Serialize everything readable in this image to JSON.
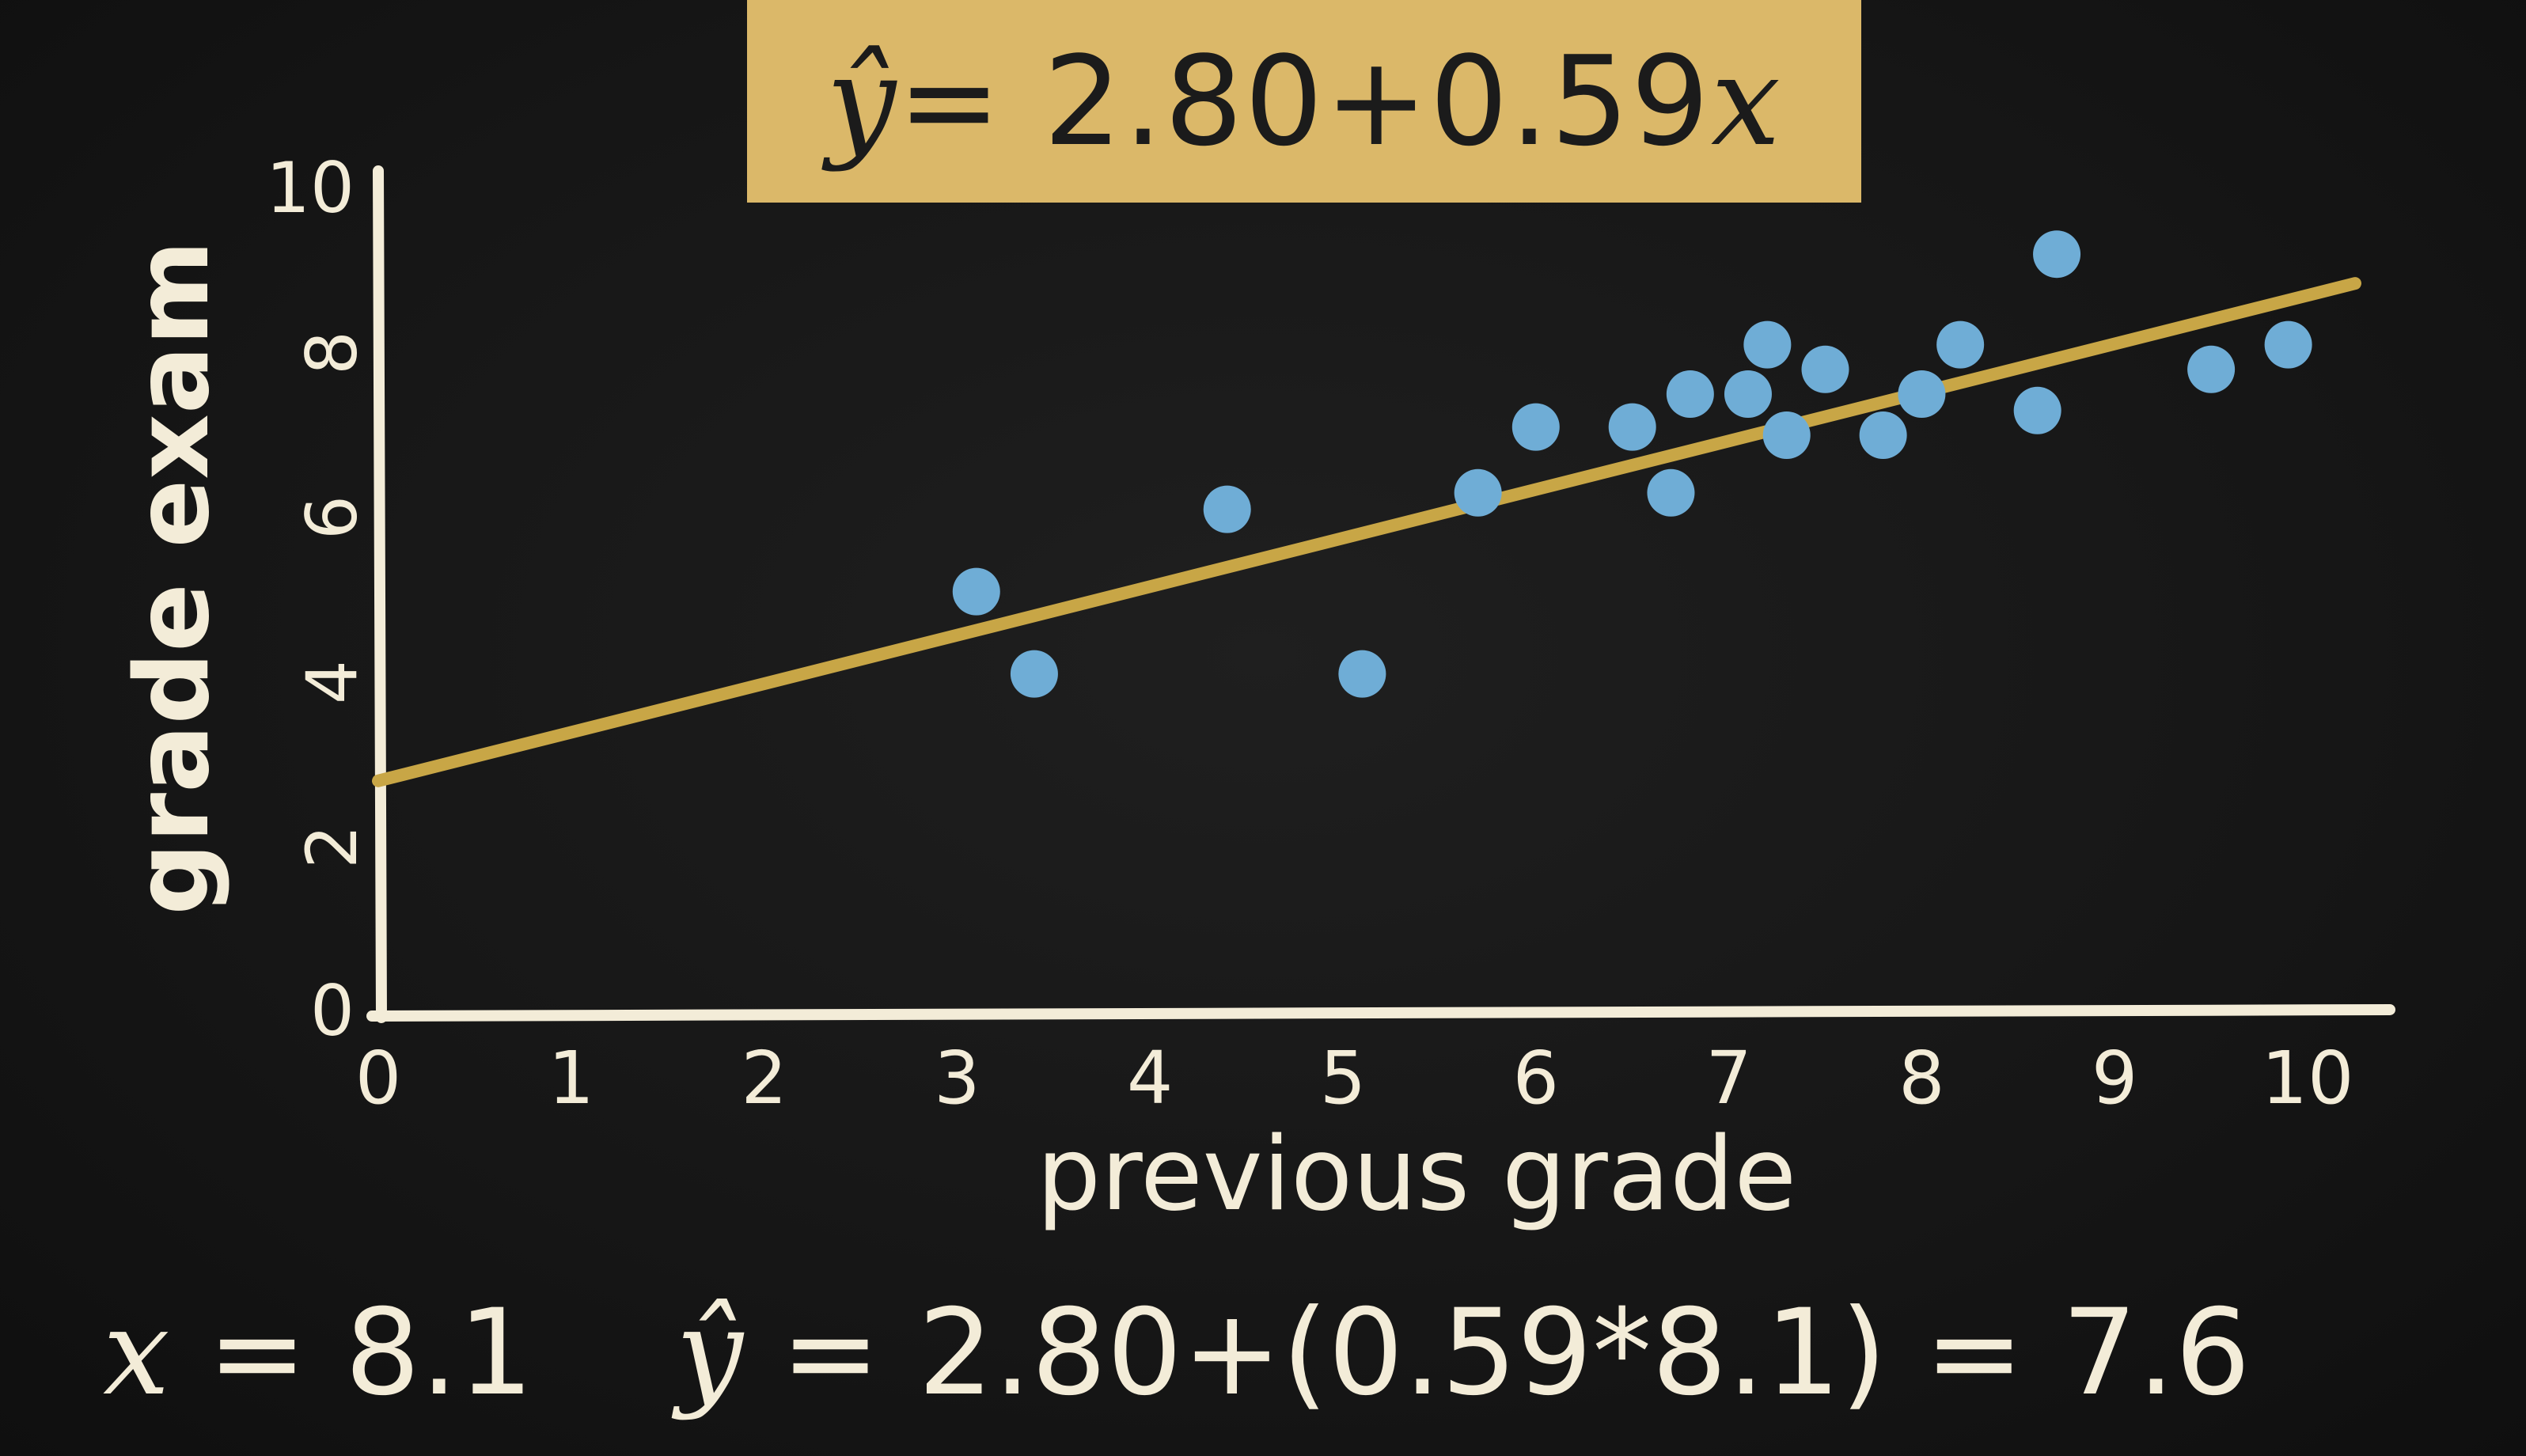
{
  "equation": {
    "yhat": "ŷ",
    "rhs": "= 2.80+0.59",
    "var": "x"
  },
  "bottom": {
    "x_var": "x",
    "x_value": "= 8.1",
    "yhat": "ŷ",
    "calc": "= 2.80+(0.59*8.1) = 7.6"
  },
  "colors": {
    "background": "#141414",
    "chalk": "#f3ecd8",
    "highlight": "#dbb869",
    "points": "#6fadd6",
    "line": "#c8a646"
  },
  "chart_data": {
    "type": "scatter",
    "xlabel": "previous grade",
    "ylabel": "grade exam",
    "xlim": [
      0,
      10
    ],
    "ylim": [
      0,
      10
    ],
    "xticks": [
      "0",
      "1",
      "2",
      "3",
      "4",
      "5",
      "6",
      "7",
      "8",
      "9",
      "10"
    ],
    "yticks": [
      "0",
      "2",
      "4",
      "6",
      "8",
      "10"
    ],
    "points": [
      {
        "x": 3.1,
        "y": 5.1
      },
      {
        "x": 3.4,
        "y": 4.1
      },
      {
        "x": 4.4,
        "y": 6.1
      },
      {
        "x": 5.1,
        "y": 4.1
      },
      {
        "x": 5.7,
        "y": 6.3
      },
      {
        "x": 6.0,
        "y": 7.1
      },
      {
        "x": 6.5,
        "y": 7.1
      },
      {
        "x": 6.7,
        "y": 6.3
      },
      {
        "x": 6.8,
        "y": 7.5
      },
      {
        "x": 7.1,
        "y": 7.5
      },
      {
        "x": 7.2,
        "y": 8.1
      },
      {
        "x": 7.3,
        "y": 7.0
      },
      {
        "x": 7.5,
        "y": 7.8
      },
      {
        "x": 7.8,
        "y": 7.0
      },
      {
        "x": 8.0,
        "y": 7.5
      },
      {
        "x": 8.2,
        "y": 8.1
      },
      {
        "x": 8.6,
        "y": 7.3
      },
      {
        "x": 8.7,
        "y": 9.2
      },
      {
        "x": 9.5,
        "y": 7.8
      },
      {
        "x": 9.9,
        "y": 8.1
      }
    ],
    "regression": {
      "intercept": 2.8,
      "slope": 0.59,
      "x_range": [
        0,
        10
      ]
    },
    "grid": false,
    "legend": "none"
  }
}
